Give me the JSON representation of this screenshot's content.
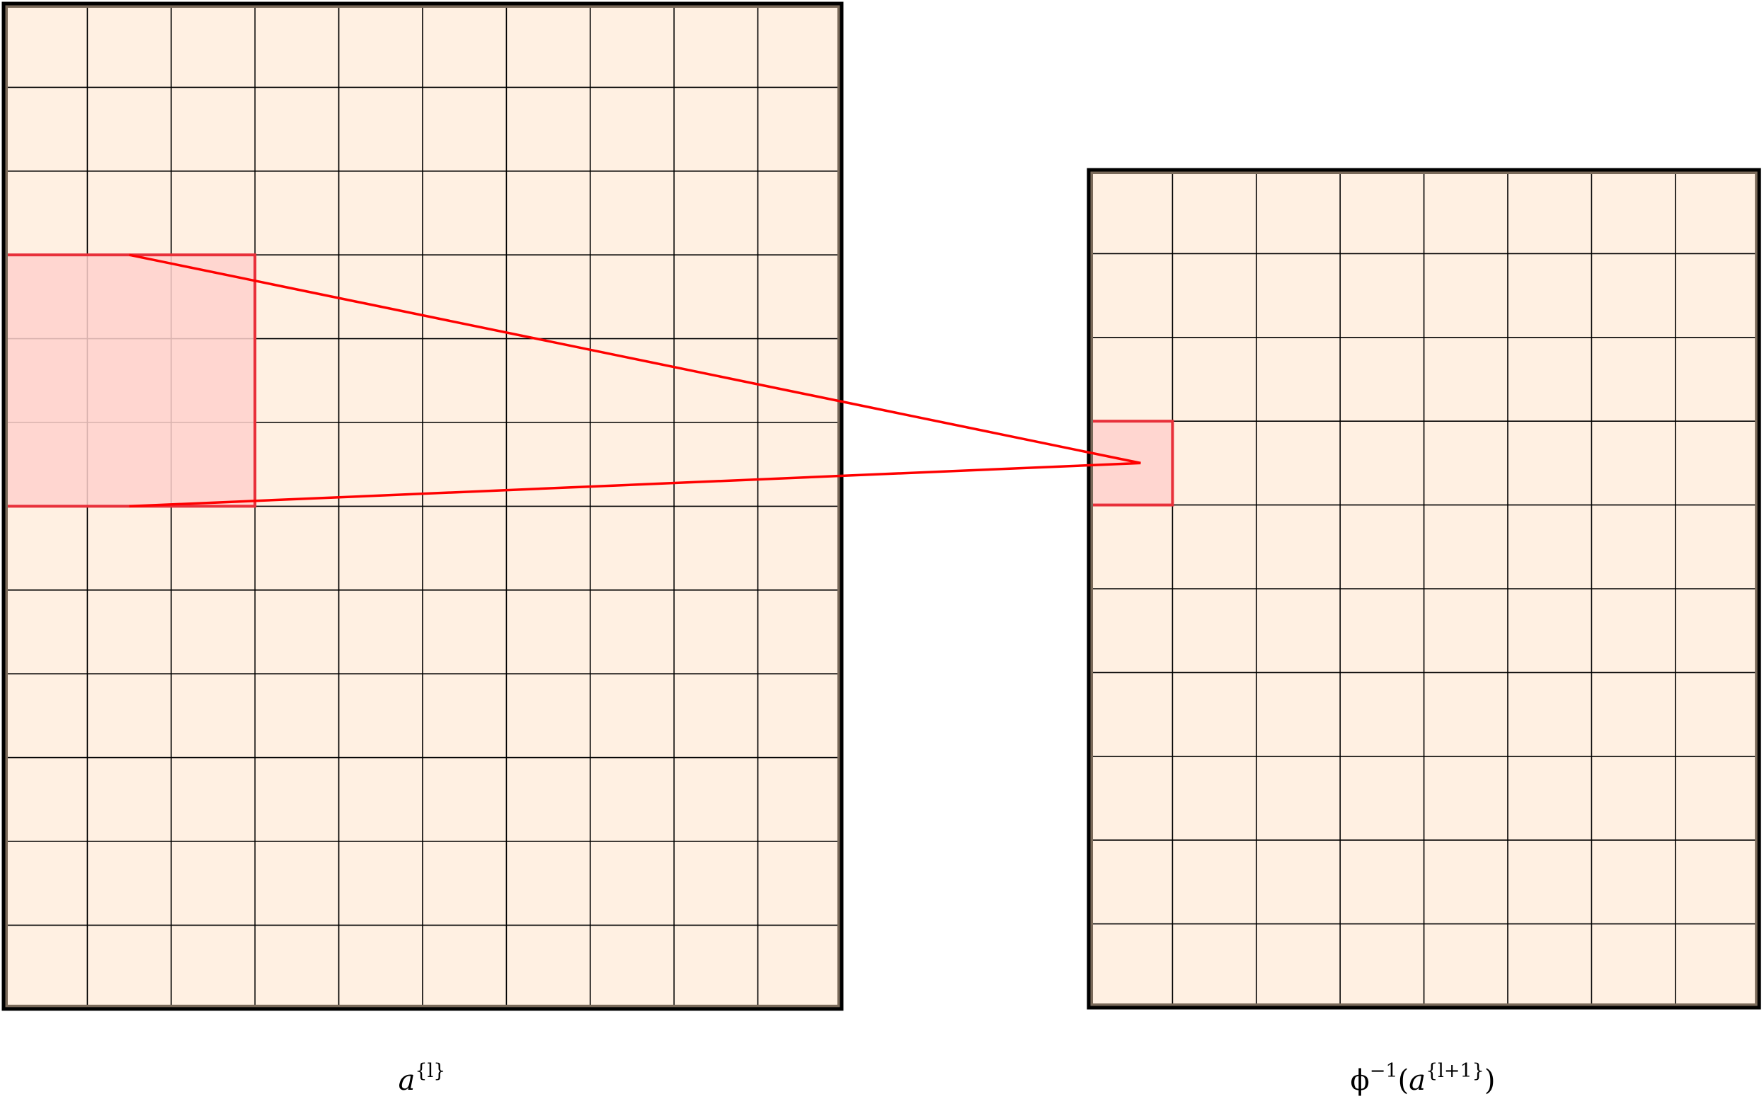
{
  "colors": {
    "cell_fill": "#fff0e2",
    "grid_line": "#000000",
    "frame_inner": "#7a6a5a",
    "highlight_fill": "#ffd1cc",
    "highlight_stroke": "#e8303a",
    "connector": "#ff0000"
  },
  "left_grid": {
    "columns": 10,
    "rows": 12,
    "highlight": {
      "col": 0,
      "row": 3,
      "cols": 3,
      "rows": 3
    }
  },
  "right_grid": {
    "columns": 8,
    "rows": 10,
    "highlight": {
      "col": 0,
      "row": 3,
      "cols": 1,
      "rows": 1
    }
  },
  "labels": {
    "left": {
      "base": "a",
      "sup": "{l}"
    },
    "right": {
      "prefix": "ϕ",
      "sup1": "−1",
      "open": "(",
      "base": "a",
      "sup2": "{l+1}",
      "close": ")"
    }
  }
}
